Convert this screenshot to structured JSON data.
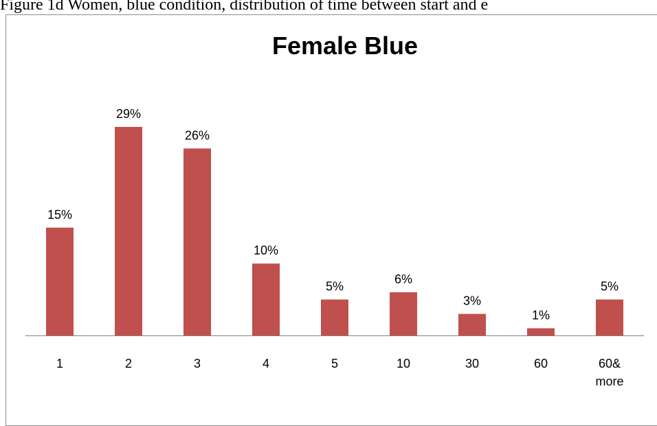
{
  "figure_caption": "Figure 1d Women, blue condition, distribution of time between start and e",
  "chart_data": {
    "type": "bar",
    "title": "Female Blue",
    "categories": [
      "1",
      "2",
      "3",
      "4",
      "5",
      "10",
      "30",
      "60",
      "60&\nmore"
    ],
    "values": [
      15,
      29,
      26,
      10,
      5,
      6,
      3,
      1,
      5
    ],
    "value_labels": [
      "15%",
      "29%",
      "26%",
      "10%",
      "5%",
      "6%",
      "3%",
      "1%",
      "5%"
    ],
    "unit": "%",
    "xlabel": "",
    "ylabel": "",
    "ylim": [
      0,
      35
    ],
    "grid": false,
    "legend": "none",
    "bar_color": "#c0504d",
    "axis_color": "#7f7f7f"
  }
}
